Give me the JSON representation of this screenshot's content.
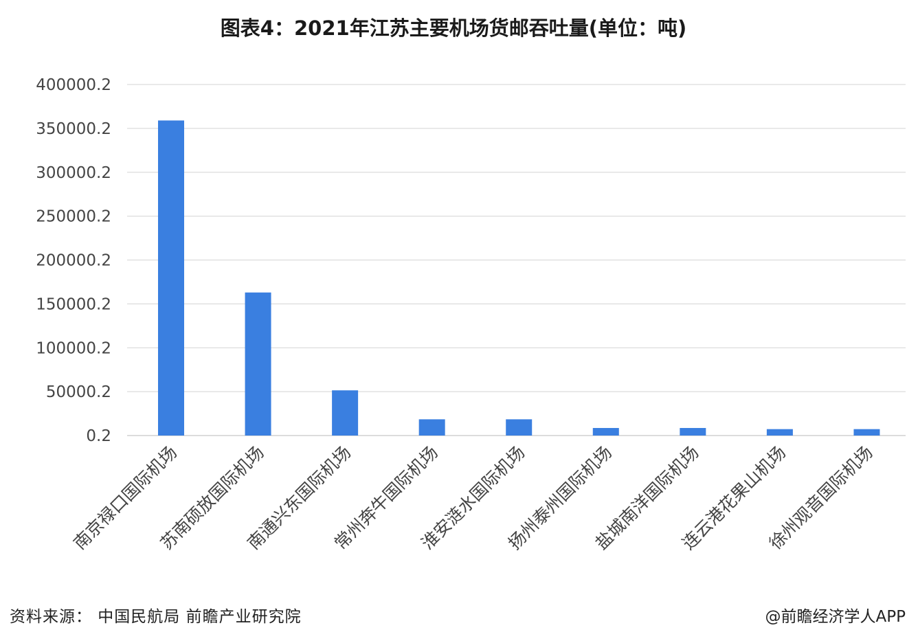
{
  "chart_data": {
    "type": "bar",
    "title": "图表4：2021年江苏主要机场货邮吞吐量(单位：吨)",
    "xlabel": "",
    "ylabel": "",
    "ylim": [
      0.2,
      400000.2
    ],
    "yticks": [
      "400000.2",
      "350000.2",
      "300000.2",
      "250000.2",
      "200000.2",
      "150000.2",
      "100000.2",
      "50000.2",
      "0.2"
    ],
    "categories": [
      "南京禄口国际机场",
      "苏南硕放国际机场",
      "南通兴东国际机场",
      "常州奔牛国际机场",
      "淮安涟水国际机场",
      "扬州泰州国际机场",
      "盐城南洋国际机场",
      "连云港花果山机场",
      "徐州观音国际机场"
    ],
    "values": [
      359000,
      163000,
      51500,
      18500,
      18500,
      8600,
      8600,
      7300,
      7300
    ],
    "bar_color": "#3a7fe0",
    "grid": true,
    "legend": "none"
  },
  "footer": {
    "source": "资料来源：  中国民航局 前瞻产业研究院",
    "brand": "@前瞻经济学人APP"
  }
}
